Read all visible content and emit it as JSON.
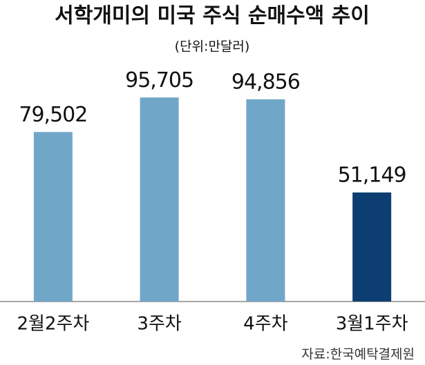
{
  "chart_data": {
    "type": "bar",
    "title": "서학개미의 미국 주식 순매수액 추이",
    "subtitle": "(단위:만달러)",
    "source": "자료:한국예탁결제원",
    "categories": [
      "2월2주차",
      "3주차",
      "4주차",
      "3월1주차"
    ],
    "values": [
      79502,
      95705,
      94856,
      51149
    ],
    "value_labels": [
      "79,502",
      "95,705",
      "94,856",
      "51,149"
    ],
    "colors": [
      "#70a7c9",
      "#70a7c9",
      "#70a7c9",
      "#0d3e72"
    ],
    "ylim": [
      0,
      100000
    ],
    "grid": false
  }
}
